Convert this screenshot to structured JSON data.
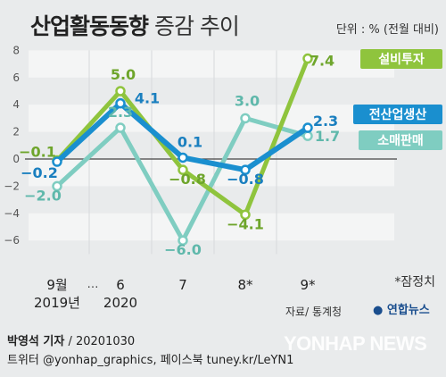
{
  "header": {
    "title_bold": "산업활동동향",
    "title_light": "증감 추이",
    "unit": "단위 : % (전월 대비)"
  },
  "footnote": "*잠정치",
  "source": "자료/ 통계청",
  "logo_text": "연합뉴스",
  "credit": {
    "author": "박영석 기자",
    "date": "20201030",
    "social": "트위터 @yonhap_graphics, 페이스북 tuney.kr/LeYN1"
  },
  "watermark": "YONHAP NEWS",
  "chart_data": {
    "type": "line",
    "x_labels": [
      "9월\n2019년",
      "6\n2020",
      "7",
      "8*",
      "9*"
    ],
    "x_gap_marker": "…",
    "ylim": [
      -7,
      8
    ],
    "yticks": [
      -6,
      -4,
      -2,
      0,
      2,
      4,
      6,
      8
    ],
    "series": [
      {
        "name": "설비투자",
        "color": "#8fc43d",
        "values": [
          -0.1,
          5.0,
          -0.8,
          -4.1,
          7.4
        ],
        "labels": [
          "−0.1",
          "5.0",
          "−0.8",
          "−4.1",
          "7.4"
        ]
      },
      {
        "name": "전산업생산",
        "color": "#1a8fcf",
        "values": [
          -0.2,
          4.1,
          0.1,
          -0.8,
          2.3
        ],
        "labels": [
          "−0.2",
          "4.1",
          "0.1",
          "−0.8",
          "2.3"
        ]
      },
      {
        "name": "소매판매",
        "color": "#7fcdc1",
        "values": [
          -2.0,
          2.3,
          -6.0,
          3.0,
          1.7
        ],
        "labels": [
          "−2.0",
          "2.3",
          "−6.0",
          "3.0",
          "1.7"
        ]
      }
    ]
  }
}
